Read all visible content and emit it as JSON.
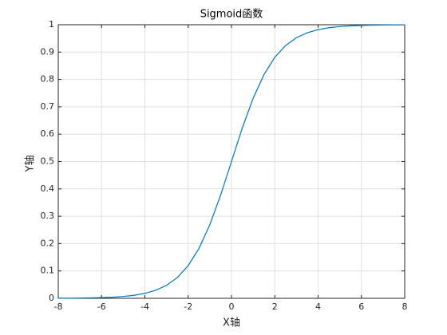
{
  "chart_data": {
    "type": "line",
    "title": "Sigmoid函数",
    "x_label": "X轴",
    "y_label": "Y轴",
    "x": [
      -8,
      -7.5,
      -7,
      -6.5,
      -6,
      -5.5,
      -5,
      -4.5,
      -4,
      -3.5,
      -3,
      -2.5,
      -2,
      -1.5,
      -1,
      -0.5,
      0,
      0.5,
      1,
      1.5,
      2,
      2.5,
      3,
      3.5,
      4,
      4.5,
      5,
      5.5,
      6,
      6.5,
      7,
      7.5,
      8
    ],
    "values": [
      0.0003,
      0.0006,
      0.0009,
      0.0015,
      0.0025,
      0.0041,
      0.0067,
      0.011,
      0.018,
      0.0293,
      0.0474,
      0.0759,
      0.1192,
      0.1824,
      0.2689,
      0.3775,
      0.5,
      0.6225,
      0.7311,
      0.8176,
      0.8808,
      0.9241,
      0.9526,
      0.9707,
      0.982,
      0.989,
      0.9933,
      0.9959,
      0.9975,
      0.9985,
      0.9991,
      0.9994,
      0.9997
    ],
    "color": "#0072bd",
    "xlim": [
      -8,
      8
    ],
    "xticks": [
      -8,
      -6,
      -4,
      -2,
      0,
      2,
      4,
      6,
      8
    ],
    "ylim": [
      0,
      1
    ],
    "yticks": [
      0,
      0.1,
      0.2,
      0.3,
      0.4,
      0.5,
      0.6,
      0.7,
      0.8,
      0.9,
      1
    ],
    "grid": true
  }
}
